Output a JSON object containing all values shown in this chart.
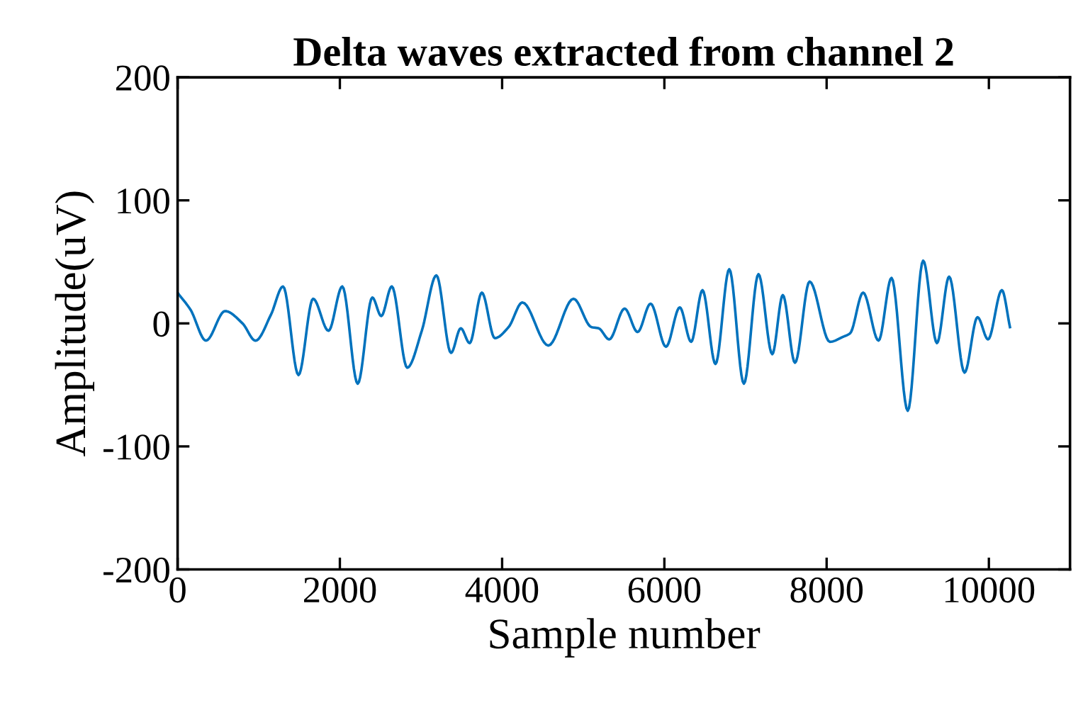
{
  "chart_data": {
    "type": "line",
    "title": "Delta waves extracted from channel 2",
    "xlabel": "Sample number",
    "ylabel": "Amplitude(uV)",
    "x": [
      10,
      160,
      350,
      585,
      800,
      960,
      1150,
      1300,
      1490,
      1670,
      1860,
      2030,
      2220,
      2400,
      2510,
      2640,
      2830,
      3010,
      3190,
      3370,
      3490,
      3600,
      3750,
      3910,
      4080,
      4250,
      4570,
      4880,
      5100,
      5190,
      5320,
      5510,
      5670,
      5830,
      6020,
      6190,
      6330,
      6470,
      6630,
      6800,
      6980,
      7160,
      7330,
      7460,
      7610,
      7790,
      8040,
      8200,
      8290,
      8450,
      8640,
      8800,
      9000,
      9190,
      9360,
      9510,
      9700,
      9860,
      9990,
      10160,
      10260
    ],
    "series": [
      {
        "color": "#0072bd",
        "values": [
          24,
          11,
          -14,
          10,
          0,
          -14,
          7,
          30,
          -42,
          20,
          -6,
          30,
          -49,
          21,
          6,
          30,
          -36,
          -6,
          39,
          -24,
          -4,
          -16,
          25,
          -12,
          -3,
          17,
          -18,
          20,
          -3,
          -4,
          -13,
          12,
          -7,
          16,
          -19,
          13,
          -15,
          27,
          -33,
          44,
          -49,
          40,
          -25,
          23,
          -32,
          34,
          -15,
          -11,
          -8,
          25,
          -14,
          37,
          -71,
          51,
          -16,
          38,
          -40,
          5,
          -13,
          27,
          -3
        ]
      }
    ],
    "xlim": [
      0,
      11000
    ],
    "ylim": [
      -200,
      200
    ],
    "xticks": [
      0,
      2000,
      4000,
      6000,
      8000,
      10000
    ],
    "yticks": [
      -200,
      -100,
      0,
      100,
      200
    ],
    "grid": false,
    "legend": false,
    "marker": "none",
    "line_style": "solid"
  }
}
